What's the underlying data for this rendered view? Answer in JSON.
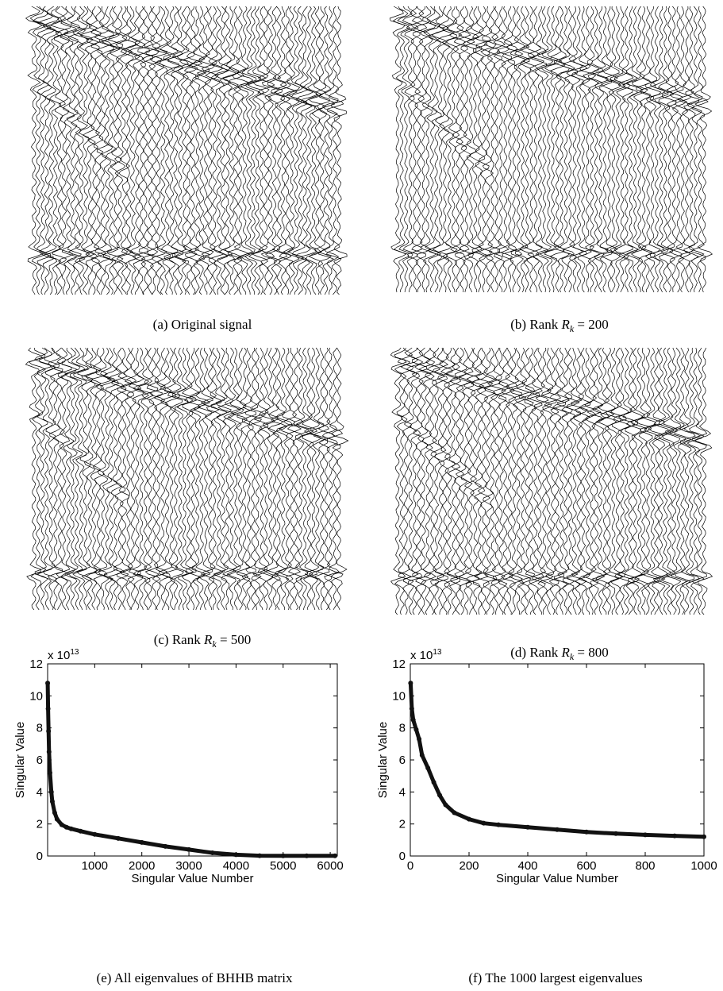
{
  "panels": [
    {
      "label": "(a)",
      "text": "Original signal"
    },
    {
      "label": "(b)",
      "text": "Rank",
      "symbol": "R",
      "subscript": "k",
      "rest": "= 200"
    },
    {
      "label": "(c)",
      "text": "Rank",
      "symbol": "R",
      "subscript": "k",
      "rest": "= 500"
    },
    {
      "label": "(d)",
      "text": "Rank",
      "symbol": "R",
      "subscript": "k",
      "rest": "= 800"
    }
  ],
  "chart_data": [
    {
      "type": "line",
      "caption": "(e) All eigenvalues of BHHB matrix",
      "x_label": "Singular Value Number",
      "y_label": "Singular Value",
      "y_multiplier": {
        "base": "x 10",
        "exponent": "13"
      },
      "color": "#111111",
      "x": [
        1,
        10,
        20,
        30,
        50,
        80,
        100,
        150,
        200,
        300,
        400,
        500,
        700,
        1000,
        1500,
        2000,
        2500,
        3000,
        3500,
        4000,
        4500,
        5000,
        5500,
        6100
      ],
      "values": [
        10.8,
        9.2,
        7.8,
        6.5,
        5.2,
        4.0,
        3.4,
        2.7,
        2.3,
        1.95,
        1.8,
        1.7,
        1.55,
        1.35,
        1.1,
        0.85,
        0.6,
        0.4,
        0.2,
        0.08,
        0.02,
        0.01,
        0.01,
        0.01
      ],
      "xlim": [
        0,
        6150
      ],
      "xticks": [
        1000,
        2000,
        3000,
        4000,
        5000,
        6000
      ],
      "ylim": [
        0,
        12
      ],
      "yticks": [
        0,
        2,
        4,
        6,
        8,
        10,
        12
      ]
    },
    {
      "type": "line",
      "caption": "(f) The 1000 largest eigenvalues",
      "x_label": "Singular Value Number",
      "y_label": "Singular Value",
      "y_multiplier": {
        "base": "x 10",
        "exponent": "13"
      },
      "color": "#111111",
      "x": [
        1,
        5,
        10,
        20,
        30,
        40,
        60,
        80,
        100,
        120,
        150,
        200,
        250,
        300,
        400,
        500,
        600,
        700,
        800,
        900,
        1000
      ],
      "values": [
        10.8,
        9.2,
        8.5,
        7.9,
        7.3,
        6.3,
        5.5,
        4.6,
        3.8,
        3.2,
        2.7,
        2.3,
        2.05,
        1.95,
        1.8,
        1.65,
        1.5,
        1.4,
        1.32,
        1.26,
        1.2
      ],
      "xlim": [
        0,
        1000
      ],
      "xticks": [
        0,
        200,
        400,
        600,
        800,
        1000
      ],
      "ylim": [
        0,
        12
      ],
      "yticks": [
        0,
        2,
        4,
        6,
        8,
        10,
        12
      ]
    }
  ]
}
